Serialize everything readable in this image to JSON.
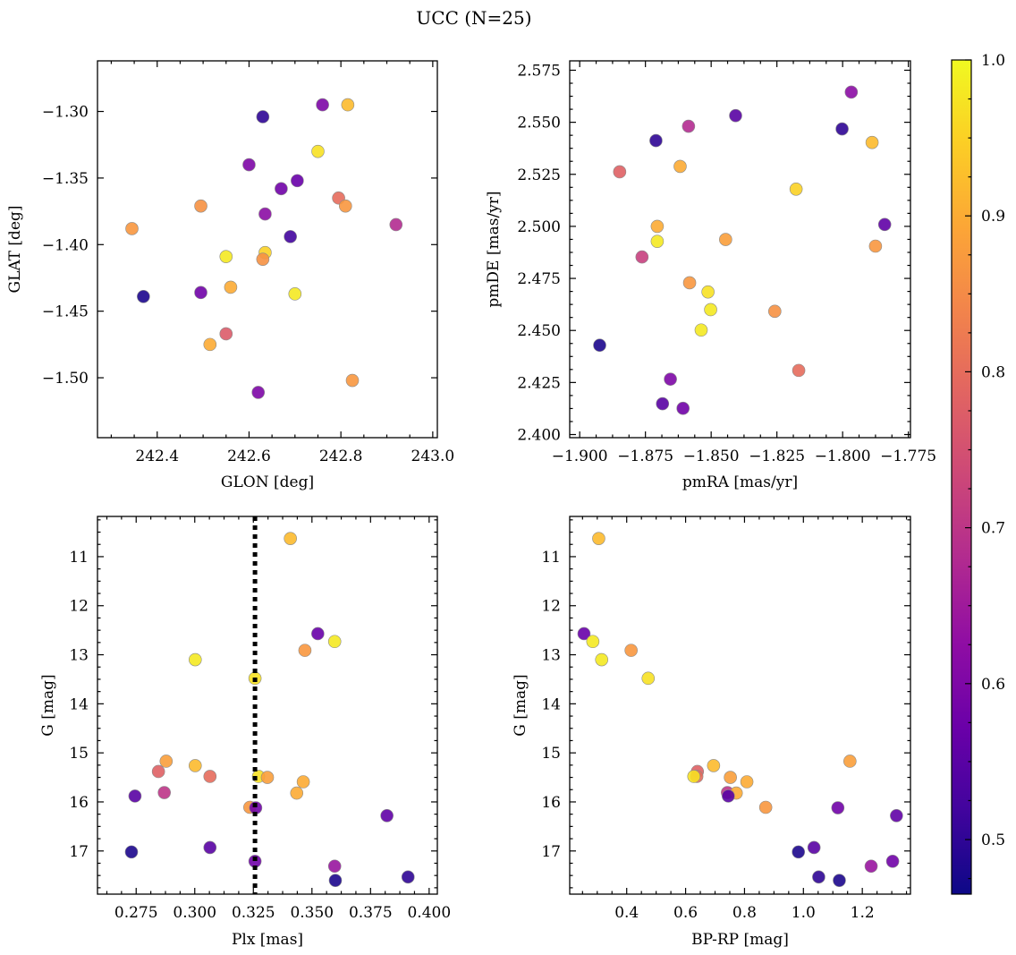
{
  "figure": {
    "title": "UCC (N=25)"
  },
  "colorbar": {
    "cmap": "plasma",
    "vmin": 0.465,
    "vmax": 1.0,
    "ticks": [
      0.5,
      0.6,
      0.7,
      0.8,
      0.9,
      1.0
    ],
    "tick_labels": [
      "0.5",
      "0.6",
      "0.7",
      "0.8",
      "0.9",
      "1.0"
    ]
  },
  "chart_data": [
    {
      "type": "scatter",
      "xlabel": "GLON [deg]",
      "ylabel": "GLAT [deg]",
      "xlim": [
        242.27,
        243.01
      ],
      "ylim": [
        -1.545,
        -1.262
      ],
      "xticks": [
        242.4,
        242.6,
        242.8,
        243.0
      ],
      "xtick_labels": [
        "242.4",
        "242.6",
        "242.8",
        "243.0"
      ],
      "yticks": [
        -1.3,
        -1.35,
        -1.4,
        -1.45,
        -1.5
      ],
      "ytick_labels": [
        "−1.30",
        "−1.35",
        "−1.40",
        "−1.45",
        "−1.50"
      ],
      "points": [
        {
          "x": 242.63,
          "y": -1.304,
          "c": 0.5
        },
        {
          "x": 242.76,
          "y": -1.295,
          "c": 0.6
        },
        {
          "x": 242.815,
          "y": -1.295,
          "c": 0.92
        },
        {
          "x": 242.75,
          "y": -1.33,
          "c": 0.97
        },
        {
          "x": 242.6,
          "y": -1.34,
          "c": 0.6
        },
        {
          "x": 242.67,
          "y": -1.358,
          "c": 0.58
        },
        {
          "x": 242.705,
          "y": -1.352,
          "c": 0.57
        },
        {
          "x": 242.795,
          "y": -1.365,
          "c": 0.8
        },
        {
          "x": 242.81,
          "y": -1.371,
          "c": 0.87
        },
        {
          "x": 242.495,
          "y": -1.371,
          "c": 0.86
        },
        {
          "x": 242.635,
          "y": -1.377,
          "c": 0.62
        },
        {
          "x": 242.92,
          "y": -1.385,
          "c": 0.68
        },
        {
          "x": 242.345,
          "y": -1.388,
          "c": 0.87
        },
        {
          "x": 242.69,
          "y": -1.394,
          "c": 0.52
        },
        {
          "x": 242.635,
          "y": -1.406,
          "c": 0.95
        },
        {
          "x": 242.63,
          "y": -1.411,
          "c": 0.86
        },
        {
          "x": 242.55,
          "y": -1.409,
          "c": 0.98
        },
        {
          "x": 242.56,
          "y": -1.432,
          "c": 0.9
        },
        {
          "x": 242.495,
          "y": -1.436,
          "c": 0.58
        },
        {
          "x": 242.7,
          "y": -1.437,
          "c": 0.98
        },
        {
          "x": 242.37,
          "y": -1.439,
          "c": 0.48
        },
        {
          "x": 242.55,
          "y": -1.467,
          "c": 0.77
        },
        {
          "x": 242.515,
          "y": -1.475,
          "c": 0.9
        },
        {
          "x": 242.62,
          "y": -1.511,
          "c": 0.6
        },
        {
          "x": 242.825,
          "y": -1.502,
          "c": 0.87
        }
      ]
    },
    {
      "type": "scatter",
      "xlabel": "pmRA [mas/yr]",
      "ylabel": "pmDE [mas/yr]",
      "xlim": [
        -1.9038,
        -1.7742
      ],
      "ylim": [
        2.3985,
        2.5795
      ],
      "xticks": [
        -1.9,
        -1.875,
        -1.85,
        -1.825,
        -1.8,
        -1.775
      ],
      "xtick_labels": [
        "−1.900",
        "−1.875",
        "−1.850",
        "−1.825",
        "−1.800",
        "−1.775"
      ],
      "yticks": [
        2.4,
        2.425,
        2.45,
        2.475,
        2.5,
        2.525,
        2.55,
        2.575
      ],
      "ytick_labels": [
        "2.400",
        "2.425",
        "2.450",
        "2.475",
        "2.500",
        "2.525",
        "2.550",
        "2.575"
      ],
      "points": [
        {
          "x": -1.7967,
          "y": 2.5645,
          "c": 0.62
        },
        {
          "x": -1.8407,
          "y": 2.5532,
          "c": 0.55
        },
        {
          "x": -1.8002,
          "y": 2.5468,
          "c": 0.5
        },
        {
          "x": -1.871,
          "y": 2.5412,
          "c": 0.5
        },
        {
          "x": -1.8586,
          "y": 2.5481,
          "c": 0.68
        },
        {
          "x": -1.7888,
          "y": 2.5403,
          "c": 0.92
        },
        {
          "x": -1.8618,
          "y": 2.5288,
          "c": 0.9
        },
        {
          "x": -1.8848,
          "y": 2.5262,
          "c": 0.78
        },
        {
          "x": -1.8177,
          "y": 2.5179,
          "c": 0.95
        },
        {
          "x": -1.784,
          "y": 2.5009,
          "c": 0.56
        },
        {
          "x": -1.8705,
          "y": 2.5,
          "c": 0.9
        },
        {
          "x": -1.8705,
          "y": 2.4928,
          "c": 0.98
        },
        {
          "x": -1.8445,
          "y": 2.4937,
          "c": 0.88
        },
        {
          "x": -1.7875,
          "y": 2.4905,
          "c": 0.87
        },
        {
          "x": -1.8763,
          "y": 2.4853,
          "c": 0.72
        },
        {
          "x": -1.8582,
          "y": 2.4729,
          "c": 0.87
        },
        {
          "x": -1.8512,
          "y": 2.4685,
          "c": 0.97
        },
        {
          "x": -1.8502,
          "y": 2.46,
          "c": 0.98
        },
        {
          "x": -1.8258,
          "y": 2.4592,
          "c": 0.86
        },
        {
          "x": -1.8538,
          "y": 2.4502,
          "c": 0.98
        },
        {
          "x": -1.8924,
          "y": 2.4429,
          "c": 0.48
        },
        {
          "x": -1.8167,
          "y": 2.4308,
          "c": 0.8
        },
        {
          "x": -1.8655,
          "y": 2.4266,
          "c": 0.6
        },
        {
          "x": -1.8685,
          "y": 2.4148,
          "c": 0.55
        },
        {
          "x": -1.8607,
          "y": 2.4126,
          "c": 0.58
        }
      ]
    },
    {
      "type": "scatter",
      "xlabel": "Plx [mas]",
      "ylabel": "G [mag]",
      "xlim": [
        0.2585,
        0.4035
      ],
      "ylim": [
        17.88,
        10.18
      ],
      "xticks": [
        0.275,
        0.3,
        0.325,
        0.35,
        0.375,
        0.4
      ],
      "xtick_labels": [
        "0.275",
        "0.300",
        "0.325",
        "0.350",
        "0.375",
        "0.400"
      ],
      "yticks": [
        11,
        12,
        13,
        14,
        15,
        16,
        17
      ],
      "ytick_labels": [
        "11",
        "12",
        "13",
        "14",
        "15",
        "16",
        "17"
      ],
      "vline": 0.3257,
      "points": [
        {
          "x": 0.3408,
          "y": 10.63,
          "c": 0.92
        },
        {
          "x": 0.3525,
          "y": 12.57,
          "c": 0.57
        },
        {
          "x": 0.3597,
          "y": 12.73,
          "c": 0.98
        },
        {
          "x": 0.347,
          "y": 12.91,
          "c": 0.87
        },
        {
          "x": 0.3002,
          "y": 13.1,
          "c": 0.98
        },
        {
          "x": 0.3257,
          "y": 13.48,
          "c": 0.97
        },
        {
          "x": 0.2878,
          "y": 15.17,
          "c": 0.88
        },
        {
          "x": 0.3002,
          "y": 15.26,
          "c": 0.92
        },
        {
          "x": 0.2845,
          "y": 15.38,
          "c": 0.78
        },
        {
          "x": 0.3065,
          "y": 15.48,
          "c": 0.8
        },
        {
          "x": 0.3272,
          "y": 15.48,
          "c": 0.97
        },
        {
          "x": 0.331,
          "y": 15.5,
          "c": 0.88
        },
        {
          "x": 0.3463,
          "y": 15.59,
          "c": 0.9
        },
        {
          "x": 0.287,
          "y": 15.81,
          "c": 0.7
        },
        {
          "x": 0.3435,
          "y": 15.82,
          "c": 0.9
        },
        {
          "x": 0.2745,
          "y": 15.88,
          "c": 0.55
        },
        {
          "x": 0.3235,
          "y": 16.11,
          "c": 0.87
        },
        {
          "x": 0.326,
          "y": 16.12,
          "c": 0.58
        },
        {
          "x": 0.382,
          "y": 16.28,
          "c": 0.56
        },
        {
          "x": 0.3065,
          "y": 16.93,
          "c": 0.55
        },
        {
          "x": 0.273,
          "y": 17.02,
          "c": 0.48
        },
        {
          "x": 0.3257,
          "y": 17.21,
          "c": 0.58
        },
        {
          "x": 0.3597,
          "y": 17.31,
          "c": 0.64
        },
        {
          "x": 0.391,
          "y": 17.53,
          "c": 0.5
        },
        {
          "x": 0.36,
          "y": 17.6,
          "c": 0.48
        }
      ]
    },
    {
      "type": "scatter",
      "xlabel": "BP-RP [mag]",
      "ylabel": "G [mag]",
      "xlim": [
        0.2065,
        1.3635
      ],
      "ylim": [
        17.88,
        10.18
      ],
      "xticks": [
        0.4,
        0.6,
        0.8,
        1.0,
        1.2
      ],
      "xtick_labels": [
        "0.4",
        "0.6",
        "0.8",
        "1.0",
        "1.2"
      ],
      "yticks": [
        11,
        12,
        13,
        14,
        15,
        16,
        17
      ],
      "ytick_labels": [
        "11",
        "12",
        "13",
        "14",
        "15",
        "16",
        "17"
      ],
      "points": [
        {
          "x": 0.305,
          "y": 10.63,
          "c": 0.92
        },
        {
          "x": 0.255,
          "y": 12.57,
          "c": 0.57
        },
        {
          "x": 0.285,
          "y": 12.73,
          "c": 0.98
        },
        {
          "x": 0.415,
          "y": 12.91,
          "c": 0.87
        },
        {
          "x": 0.315,
          "y": 13.1,
          "c": 0.98
        },
        {
          "x": 0.473,
          "y": 13.48,
          "c": 0.97
        },
        {
          "x": 1.158,
          "y": 15.17,
          "c": 0.88
        },
        {
          "x": 0.695,
          "y": 15.26,
          "c": 0.92
        },
        {
          "x": 0.64,
          "y": 15.38,
          "c": 0.78
        },
        {
          "x": 0.638,
          "y": 15.48,
          "c": 0.8
        },
        {
          "x": 0.628,
          "y": 15.48,
          "c": 0.97
        },
        {
          "x": 0.752,
          "y": 15.5,
          "c": 0.88
        },
        {
          "x": 0.808,
          "y": 15.59,
          "c": 0.9
        },
        {
          "x": 0.742,
          "y": 15.81,
          "c": 0.7
        },
        {
          "x": 0.772,
          "y": 15.82,
          "c": 0.9
        },
        {
          "x": 0.745,
          "y": 15.88,
          "c": 0.55
        },
        {
          "x": 0.872,
          "y": 16.11,
          "c": 0.87
        },
        {
          "x": 1.117,
          "y": 16.12,
          "c": 0.58
        },
        {
          "x": 1.316,
          "y": 16.28,
          "c": 0.56
        },
        {
          "x": 1.036,
          "y": 16.93,
          "c": 0.55
        },
        {
          "x": 0.983,
          "y": 17.02,
          "c": 0.48
        },
        {
          "x": 1.303,
          "y": 17.21,
          "c": 0.58
        },
        {
          "x": 1.23,
          "y": 17.31,
          "c": 0.64
        },
        {
          "x": 1.052,
          "y": 17.53,
          "c": 0.5
        },
        {
          "x": 1.122,
          "y": 17.6,
          "c": 0.48
        }
      ]
    }
  ]
}
